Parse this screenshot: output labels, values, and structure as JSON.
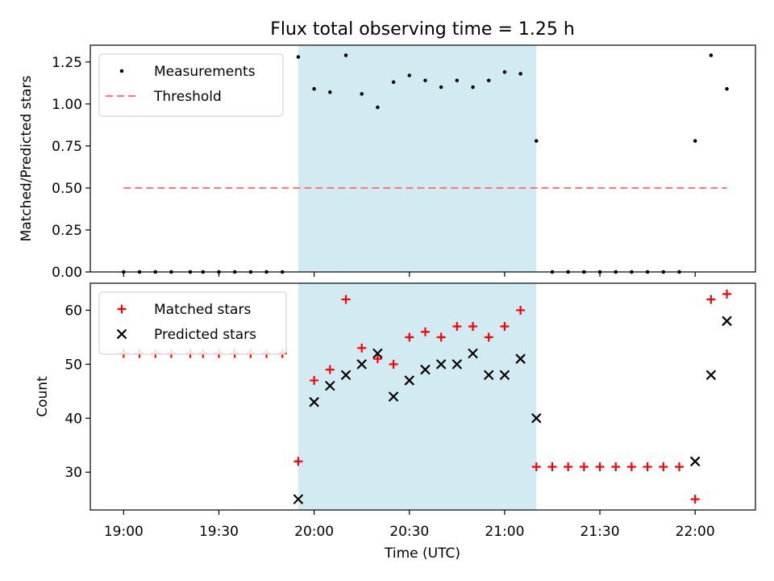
{
  "chart_data": {
    "type": "scatter",
    "title": "Flux total observing time = 1.25 h",
    "xlabel": "Time (UTC)",
    "x_ticks": [
      "19:00",
      "19:30",
      "20:00",
      "20:30",
      "21:00",
      "21:30",
      "22:00"
    ],
    "highlight_span": {
      "start": "19:55",
      "end": "21:10",
      "color": "#add8e6"
    },
    "panels": [
      {
        "ylabel": "Matched/Predicted stars",
        "ylim": [
          0,
          1.35
        ],
        "y_ticks": [
          "0.00",
          "0.25",
          "0.50",
          "0.75",
          "1.00",
          "1.25"
        ],
        "legend": {
          "placement": "top-left",
          "entries": [
            {
              "label": "Measurements",
              "marker": "dot",
              "color": "#000000"
            },
            {
              "label": "Threshold",
              "marker": "dashed-line",
              "color": "#f08080"
            }
          ]
        },
        "threshold": {
          "value": 0.5,
          "from": "19:00",
          "to": "22:10",
          "color": "#f08080"
        },
        "series": [
          {
            "name": "Measurements",
            "marker": "dot",
            "color": "#000000",
            "points": [
              [
                "19:00",
                0
              ],
              [
                "19:05",
                0
              ],
              [
                "19:10",
                0
              ],
              [
                "19:15",
                0
              ],
              [
                "19:21",
                0
              ],
              [
                "19:25",
                0
              ],
              [
                "19:30",
                0
              ],
              [
                "19:35",
                0
              ],
              [
                "19:40",
                0
              ],
              [
                "19:45",
                0
              ],
              [
                "19:50",
                0
              ],
              [
                "19:55",
                1.28
              ],
              [
                "20:00",
                1.09
              ],
              [
                "20:05",
                1.07
              ],
              [
                "20:10",
                1.29
              ],
              [
                "20:15",
                1.06
              ],
              [
                "20:20",
                0.98
              ],
              [
                "20:25",
                1.13
              ],
              [
                "20:30",
                1.17
              ],
              [
                "20:35",
                1.14
              ],
              [
                "20:40",
                1.1
              ],
              [
                "20:45",
                1.14
              ],
              [
                "20:50",
                1.1
              ],
              [
                "20:55",
                1.14
              ],
              [
                "21:00",
                1.19
              ],
              [
                "21:05",
                1.18
              ],
              [
                "21:10",
                0.78
              ],
              [
                "21:15",
                0
              ],
              [
                "21:20",
                0
              ],
              [
                "21:25",
                0
              ],
              [
                "21:30",
                0
              ],
              [
                "21:35",
                0
              ],
              [
                "21:40",
                0
              ],
              [
                "21:45",
                0
              ],
              [
                "21:50",
                0
              ],
              [
                "21:55",
                0
              ],
              [
                "22:00",
                0.78
              ],
              [
                "22:05",
                1.29
              ],
              [
                "22:10",
                1.09
              ]
            ]
          }
        ]
      },
      {
        "ylabel": "Count",
        "ylim": [
          23,
          65
        ],
        "y_ticks": [
          "30",
          "40",
          "50",
          "60"
        ],
        "legend": {
          "placement": "top-left",
          "entries": [
            {
              "label": "Matched stars",
              "marker": "plus",
              "color": "#ff0000"
            },
            {
              "label": "Predicted stars",
              "marker": "x",
              "color": "#000000"
            }
          ]
        },
        "series": [
          {
            "name": "Matched stars",
            "marker": "plus",
            "color": "#ff0000",
            "points": [
              [
                "19:00",
                52
              ],
              [
                "19:05",
                52
              ],
              [
                "19:10",
                52
              ],
              [
                "19:15",
                52
              ],
              [
                "19:21",
                52
              ],
              [
                "19:25",
                52
              ],
              [
                "19:30",
                52
              ],
              [
                "19:35",
                52
              ],
              [
                "19:40",
                52
              ],
              [
                "19:45",
                52
              ],
              [
                "19:50",
                52
              ],
              [
                "19:55",
                32
              ],
              [
                "20:00",
                47
              ],
              [
                "20:05",
                49
              ],
              [
                "20:10",
                62
              ],
              [
                "20:15",
                53
              ],
              [
                "20:20",
                51
              ],
              [
                "20:25",
                50
              ],
              [
                "20:30",
                55
              ],
              [
                "20:35",
                56
              ],
              [
                "20:40",
                55
              ],
              [
                "20:45",
                57
              ],
              [
                "20:50",
                57
              ],
              [
                "20:55",
                55
              ],
              [
                "21:00",
                57
              ],
              [
                "21:05",
                60
              ],
              [
                "21:10",
                31
              ],
              [
                "21:15",
                31
              ],
              [
                "21:20",
                31
              ],
              [
                "21:25",
                31
              ],
              [
                "21:30",
                31
              ],
              [
                "21:35",
                31
              ],
              [
                "21:40",
                31
              ],
              [
                "21:45",
                31
              ],
              [
                "21:50",
                31
              ],
              [
                "21:55",
                31
              ],
              [
                "22:00",
                25
              ],
              [
                "22:05",
                62
              ],
              [
                "22:10",
                63
              ]
            ]
          },
          {
            "name": "Predicted stars",
            "marker": "x",
            "color": "#000000",
            "points": [
              [
                "19:55",
                25
              ],
              [
                "20:00",
                43
              ],
              [
                "20:05",
                46
              ],
              [
                "20:10",
                48
              ],
              [
                "20:15",
                50
              ],
              [
                "20:20",
                52
              ],
              [
                "20:25",
                44
              ],
              [
                "20:30",
                47
              ],
              [
                "20:35",
                49
              ],
              [
                "20:40",
                50
              ],
              [
                "20:45",
                50
              ],
              [
                "20:50",
                52
              ],
              [
                "20:55",
                48
              ],
              [
                "21:00",
                48
              ],
              [
                "21:05",
                51
              ],
              [
                "21:10",
                40
              ],
              [
                "22:00",
                32
              ],
              [
                "22:05",
                48
              ],
              [
                "22:10",
                58
              ]
            ]
          }
        ]
      }
    ]
  }
}
